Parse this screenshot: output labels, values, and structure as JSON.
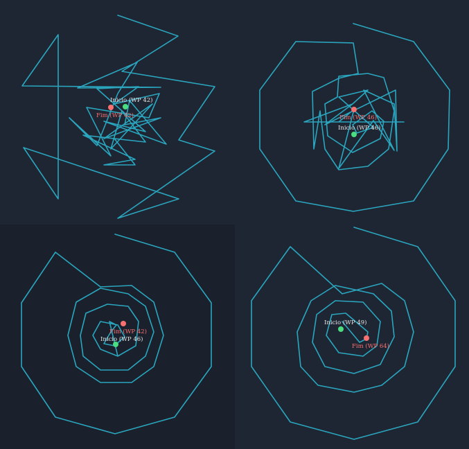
{
  "colors": {
    "background": "#1f2633",
    "background_alt": "#1b212c",
    "path": "#2aa6bf",
    "start_marker": "#4ade80",
    "end_marker": "#f87171",
    "start_label": "#e6e6e6",
    "end_label": "#f87171"
  },
  "panels": [
    {
      "start_label": "Inicio (WP 42)",
      "end_label": "Fim (WP 42)"
    },
    {
      "start_label": "Inicio (WP 46)",
      "end_label": "Fim (WP 46)"
    },
    {
      "start_label": "Inicio (WP 46)",
      "end_label": "Fim (WP 42)"
    },
    {
      "start_label": "Inicio (WP 49)",
      "end_label": "Fim (WP 64)"
    }
  ]
}
